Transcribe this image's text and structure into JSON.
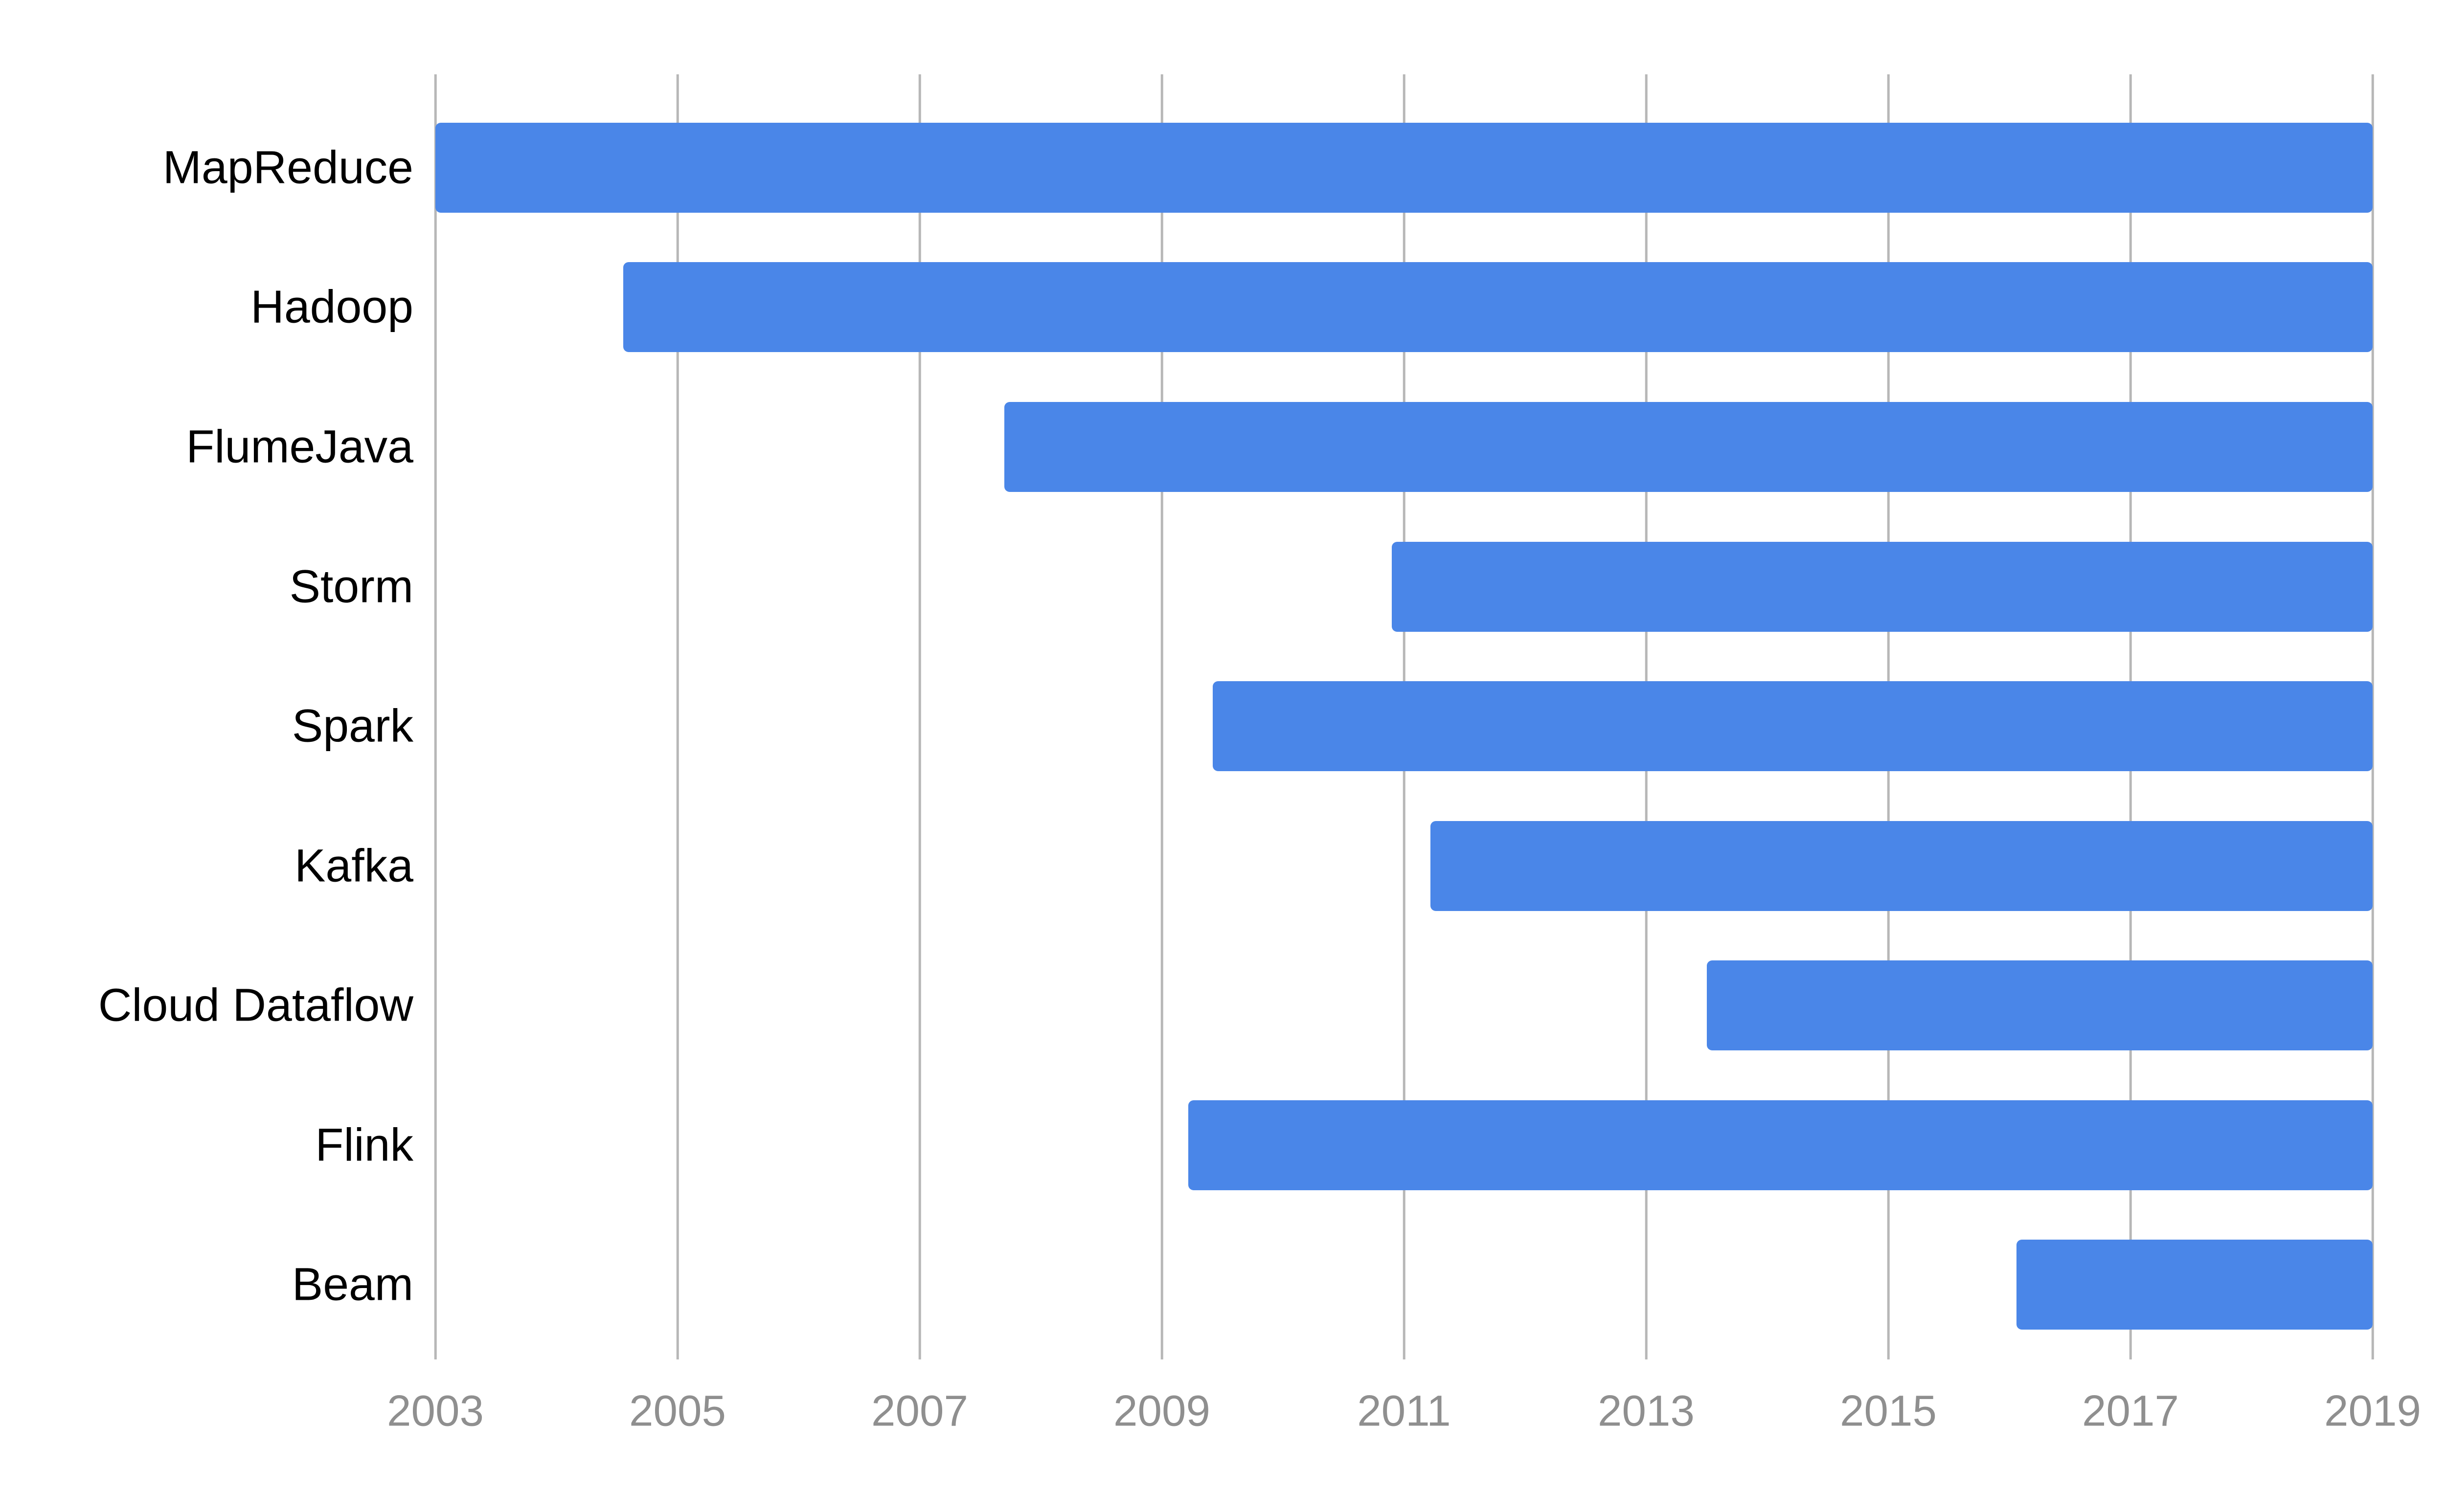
{
  "chart_data": {
    "type": "bar",
    "orientation": "horizontal",
    "title": "",
    "xlabel": "",
    "ylabel": "",
    "grid": "vertical",
    "legend": "none",
    "background": "#ffffff",
    "x_axis": {
      "min": 2003,
      "max": 2019,
      "tick_step": 2,
      "tick_labels": [
        "2003",
        "2005",
        "2007",
        "2009",
        "2011",
        "2013",
        "2015",
        "2017",
        "2019"
      ]
    },
    "categories": [
      "MapReduce",
      "Hadoop",
      "FlumeJava",
      "Storm",
      "Spark",
      "Kafka",
      "Cloud Dataflow",
      "Flink",
      "Beam"
    ],
    "bars": [
      {
        "label": "MapReduce",
        "start": 2003.0,
        "end": 2019.0
      },
      {
        "label": "Hadoop",
        "start": 2004.55,
        "end": 2019.0
      },
      {
        "label": "FlumeJava",
        "start": 2007.7,
        "end": 2019.0
      },
      {
        "label": "Storm",
        "start": 2010.9,
        "end": 2019.0
      },
      {
        "label": "Spark",
        "start": 2009.42,
        "end": 2019.0
      },
      {
        "label": "Kafka",
        "start": 2011.22,
        "end": 2019.0
      },
      {
        "label": "Cloud Dataflow",
        "start": 2013.5,
        "end": 2019.0
      },
      {
        "label": "Flink",
        "start": 2009.22,
        "end": 2019.0
      },
      {
        "label": "Beam",
        "start": 2016.06,
        "end": 2019.0
      }
    ],
    "colors": {
      "bar": "#4a86e8",
      "gridline": "#b7b7b7",
      "tick_text": "#8f8f8f",
      "category_text": "#000000"
    }
  }
}
